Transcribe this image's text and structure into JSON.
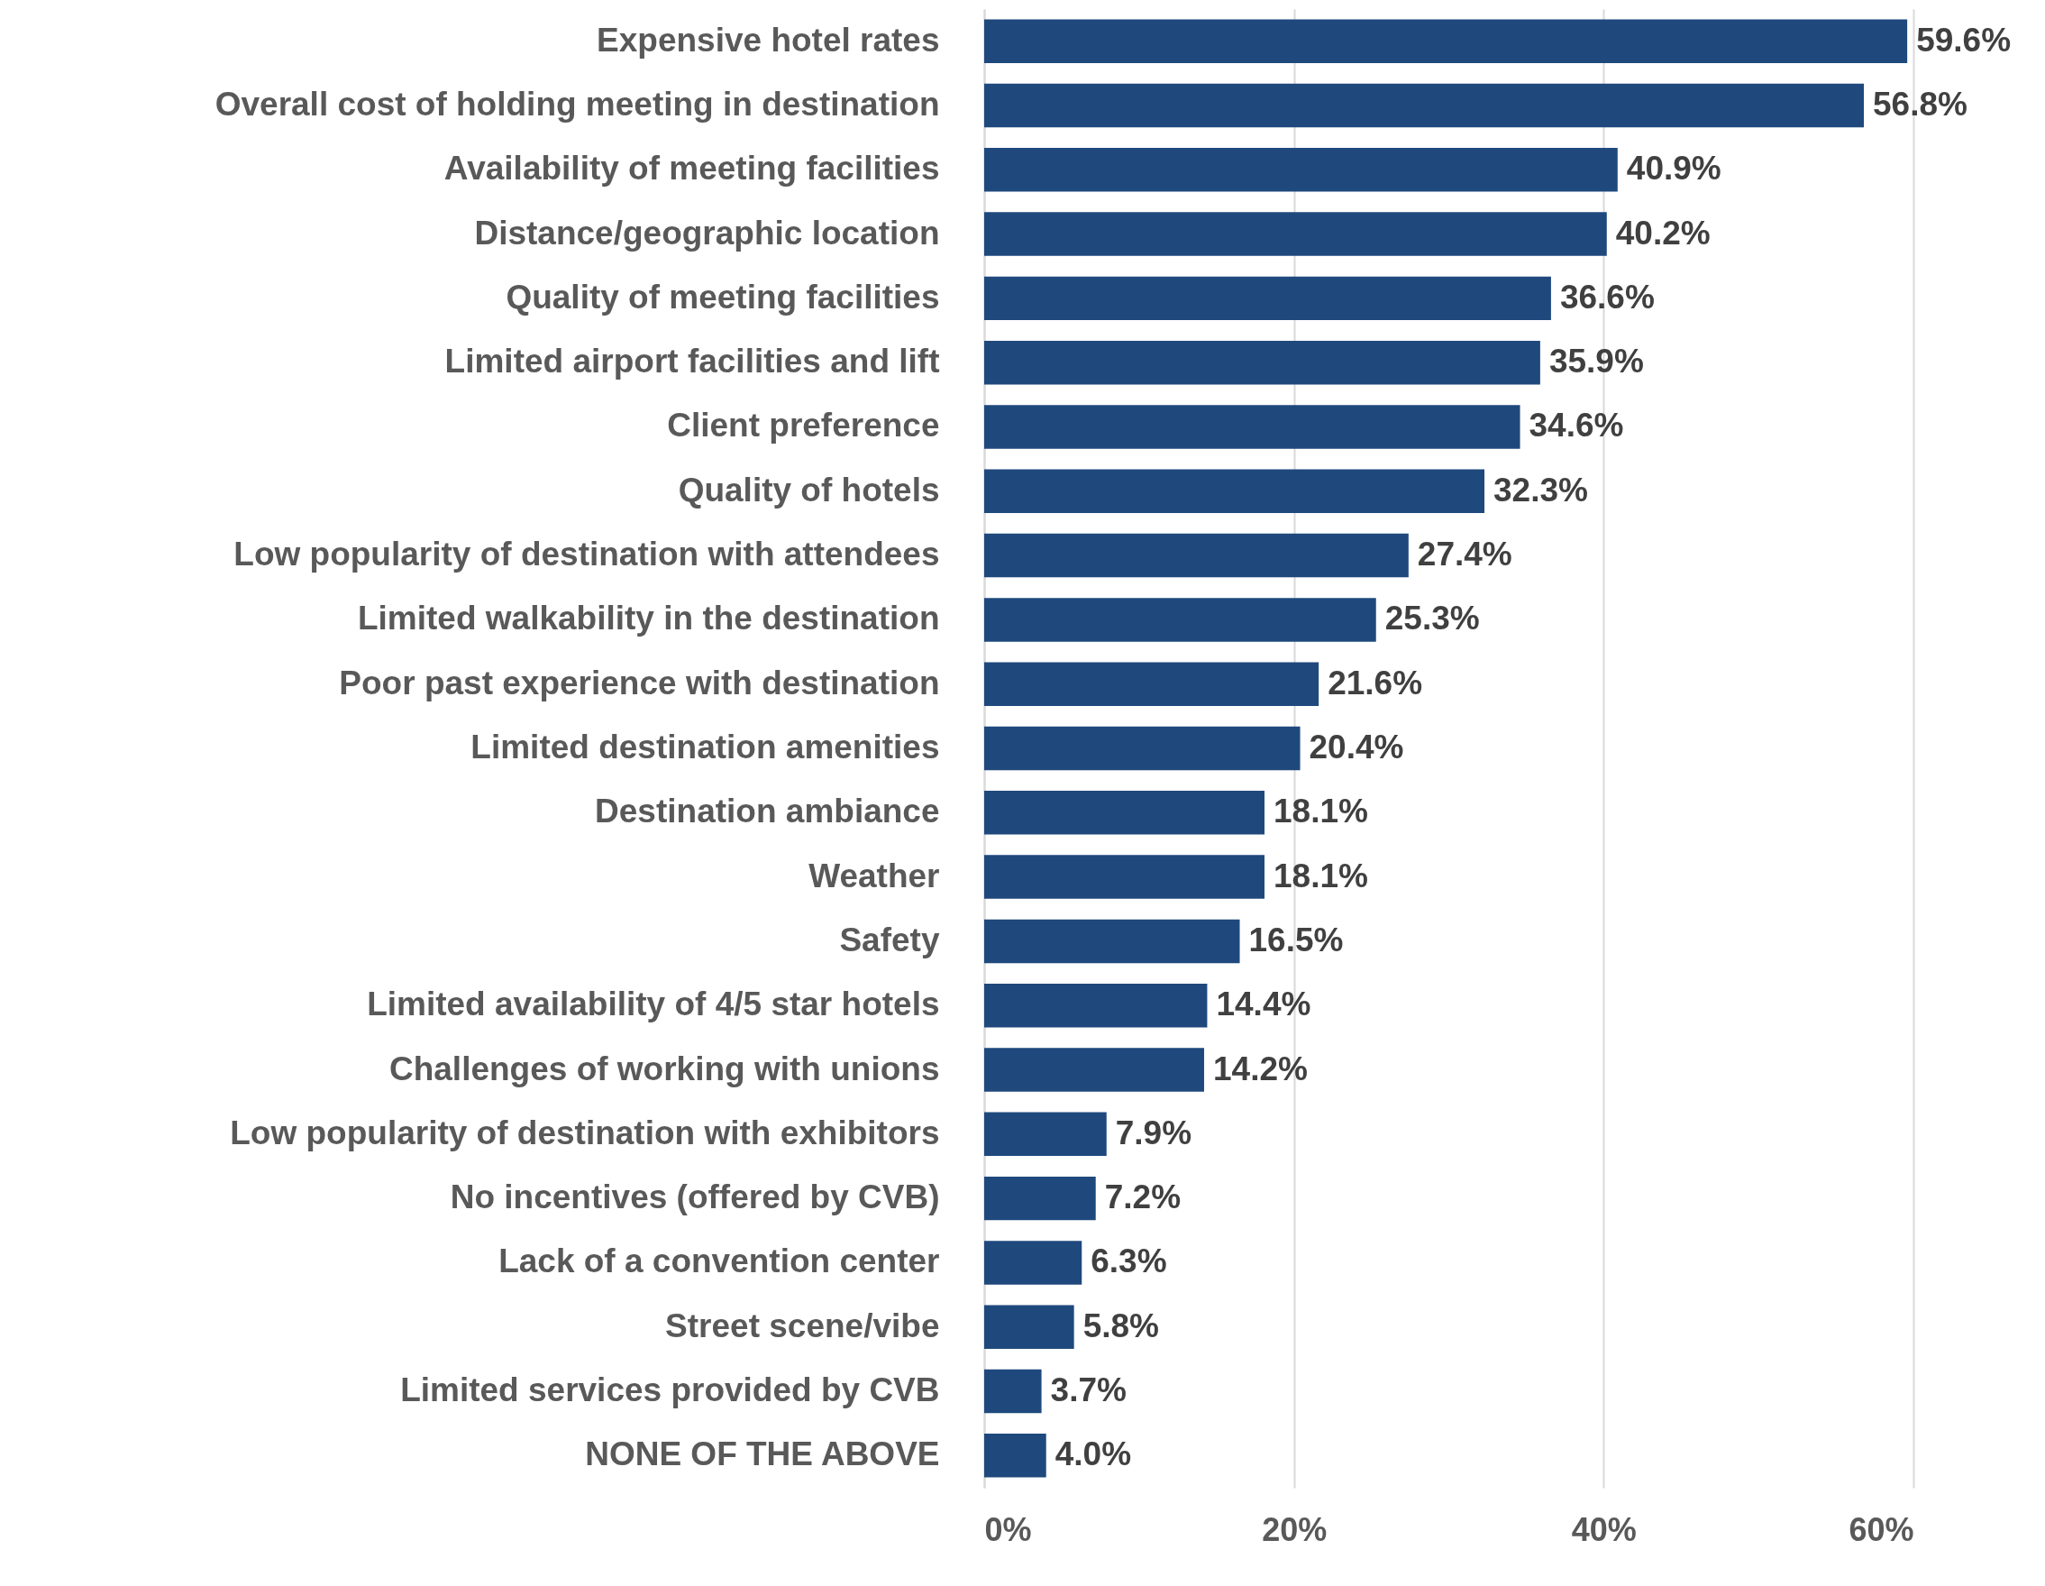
{
  "chart_data": {
    "type": "bar",
    "orientation": "horizontal",
    "color": "#1f497d",
    "categories": [
      "Expensive hotel rates",
      "Overall cost of holding meeting in destination",
      "Availability of meeting facilities",
      "Distance/geographic location",
      "Quality of meeting facilities",
      "Limited airport facilities and lift",
      "Client preference",
      "Quality of hotels",
      "Low popularity of destination with attendees",
      "Limited walkability in the destination",
      "Poor past experience with destination",
      "Limited destination amenities",
      "Destination ambiance",
      "Weather",
      "Safety",
      "Limited availability of 4/5 star hotels",
      "Challenges of working with unions",
      "Low popularity of destination with exhibitors",
      "No incentives (offered by CVB)",
      "Lack of a convention center",
      "Street scene/vibe",
      "Limited services provided by CVB",
      "NONE OF THE ABOVE"
    ],
    "values": [
      59.6,
      56.8,
      40.9,
      40.2,
      36.6,
      35.9,
      34.6,
      32.3,
      27.4,
      25.3,
      21.6,
      20.4,
      18.1,
      18.1,
      16.5,
      14.4,
      14.2,
      7.9,
      7.2,
      6.3,
      5.8,
      3.7,
      4.0
    ],
    "value_labels": [
      "59.6%",
      "56.8%",
      "40.9%",
      "40.2%",
      "36.6%",
      "35.9%",
      "34.6%",
      "32.3%",
      "27.4%",
      "25.3%",
      "21.6%",
      "20.4%",
      "18.1%",
      "18.1%",
      "16.5%",
      "14.4%",
      "14.2%",
      "7.9%",
      "7.2%",
      "6.3%",
      "5.8%",
      "3.7%",
      "4.0%"
    ],
    "xlim": [
      0,
      60
    ],
    "xticks": [
      {
        "value": 0,
        "label": "0%"
      },
      {
        "value": 20,
        "label": "20%"
      },
      {
        "value": 40,
        "label": "40%"
      },
      {
        "value": 60,
        "label": "60%"
      }
    ],
    "grid": "x"
  }
}
